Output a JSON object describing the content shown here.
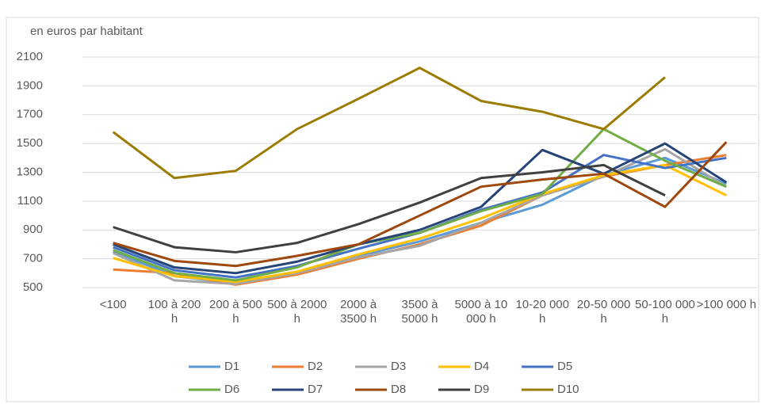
{
  "chart_data": {
    "type": "line",
    "y_label": "en euros par habitant",
    "categories": [
      "<100",
      "100 à 200 h",
      "200 à 500 h",
      "500 à 2000 h",
      "2000 à 3500 h",
      "3500 à 5000 h",
      "5000 à 10 000 h",
      "10-20 000 h",
      "20-50 000 h",
      "50-100 000 h",
      ">100 000 h"
    ],
    "ylim": [
      500,
      2100
    ],
    "yticks": [
      500,
      700,
      900,
      1100,
      1300,
      1500,
      1700,
      1900,
      2100
    ],
    "grid": true,
    "legend": "bottom",
    "series": [
      {
        "name": "D1",
        "color": "#5b9bd5",
        "values": [
          750,
          580,
          530,
          600,
          720,
          820,
          950,
          1075,
          1280,
          1400,
          1220
        ]
      },
      {
        "name": "D2",
        "color": "#ed7d31",
        "values": [
          625,
          600,
          520,
          590,
          700,
          800,
          930,
          1140,
          1270,
          1350,
          1420
        ]
      },
      {
        "name": "D3",
        "color": "#a5a5a5",
        "values": [
          740,
          550,
          525,
          600,
          710,
          790,
          950,
          1140,
          1270,
          1460,
          1200
        ]
      },
      {
        "name": "D4",
        "color": "#ffc000",
        "values": [
          705,
          580,
          540,
          610,
          730,
          840,
          980,
          1150,
          1280,
          1350,
          1140
        ]
      },
      {
        "name": "D5",
        "color": "#4472c4",
        "values": [
          780,
          620,
          570,
          650,
          770,
          880,
          1040,
          1160,
          1420,
          1330,
          1400
        ]
      },
      {
        "name": "D6",
        "color": "#70ad47",
        "values": [
          760,
          600,
          550,
          640,
          800,
          880,
          1030,
          1150,
          1600,
          1380,
          1200
        ]
      },
      {
        "name": "D7",
        "color": "#264478",
        "values": [
          800,
          640,
          600,
          680,
          800,
          900,
          1060,
          1455,
          1290,
          1500,
          1230
        ]
      },
      {
        "name": "D8",
        "color": "#9e480e",
        "values": [
          810,
          685,
          650,
          720,
          800,
          1000,
          1200,
          1250,
          1290,
          1060,
          1510
        ]
      },
      {
        "name": "D9",
        "color": "#404040",
        "values": [
          920,
          780,
          745,
          810,
          940,
          1090,
          1260,
          1300,
          1350,
          1140,
          null
        ]
      },
      {
        "name": "D10",
        "color": "#9c7c00",
        "values": [
          1580,
          1260,
          1310,
          1600,
          1810,
          2025,
          1795,
          1720,
          1600,
          1960,
          null
        ]
      }
    ]
  }
}
